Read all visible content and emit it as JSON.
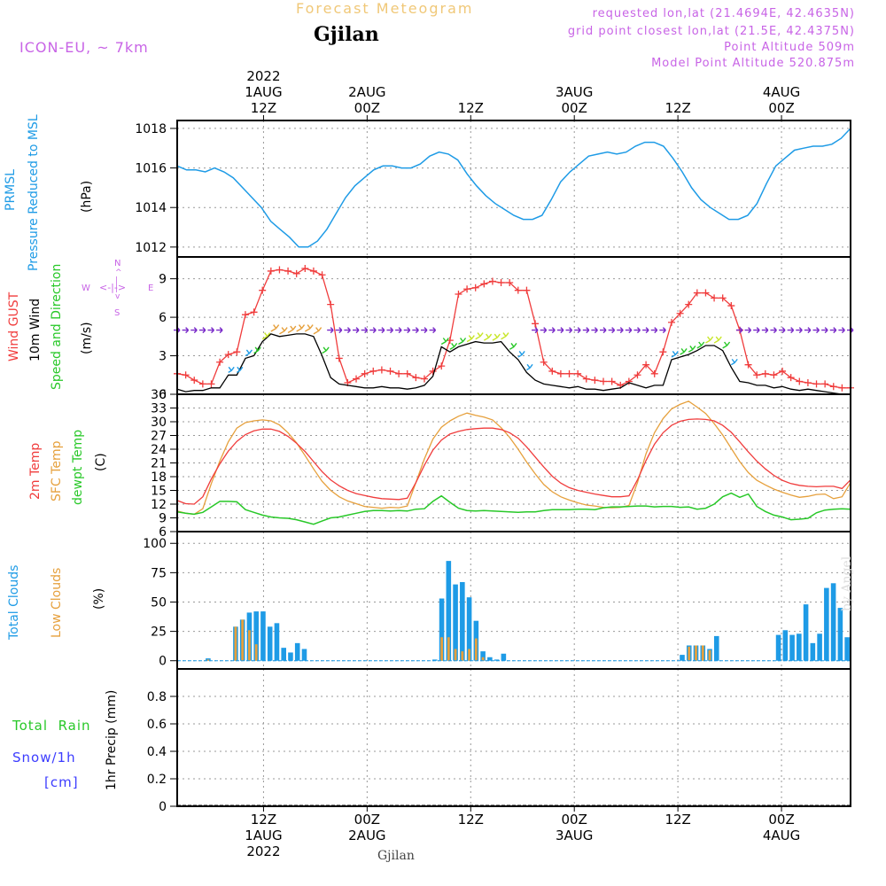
{
  "header": {
    "product": "Forecast Meteogram",
    "location": "Gjilan",
    "model": "ICON-EU, ~ 7km",
    "requested": "requested lon,lat (21.4694E, 42.4635N)",
    "grid_point": "grid point closest lon,lat (21.5E, 42.4375N)",
    "point_altitude": "Point Altitude 509m",
    "model_altitude": "Model Point Altitude 520.875m",
    "footer_location": "Gjilan",
    "watermark": "by Angel"
  },
  "colors": {
    "pressure": "#1e9be6",
    "gust": "#f03c3c",
    "wind": "#000000",
    "temp2m": "#f03c3c",
    "sfc": "#e6a03c",
    "dewpt": "#28c828",
    "total_clouds": "#1e9be6",
    "low_clouds": "#e6a03c",
    "rain": "#28c828",
    "snow": "#3c3cff",
    "header_orange": "#f0c878",
    "header_purple": "#c864e6",
    "grid": "#999999"
  },
  "time_axis": {
    "start": "2022-08-01T02:00Z",
    "end": "2022-08-04T08:00Z",
    "top_ticks": [
      {
        "lines": [
          "2022",
          "1AUG",
          "12Z"
        ]
      },
      {
        "lines": [
          "2AUG",
          "00Z"
        ]
      },
      {
        "lines": [
          "12Z"
        ]
      },
      {
        "lines": [
          "3AUG",
          "00Z"
        ]
      },
      {
        "lines": [
          "12Z"
        ]
      },
      {
        "lines": [
          "4AUG",
          "00Z"
        ]
      }
    ],
    "bottom_ticks": [
      {
        "lines": [
          "12Z",
          "1AUG",
          "2022"
        ]
      },
      {
        "lines": [
          "00Z",
          "2AUG"
        ]
      },
      {
        "lines": [
          "12Z"
        ]
      },
      {
        "lines": [
          "00Z",
          "3AUG"
        ]
      },
      {
        "lines": [
          "12Z"
        ]
      },
      {
        "lines": [
          "00Z",
          "4AUG"
        ]
      }
    ]
  },
  "panel_labels": {
    "pressure": {
      "lines": [
        "PRMSL",
        "Pressure Reduced to MSL"
      ],
      "unit": "(hPa)"
    },
    "wind": {
      "lines": [
        "Wind GUST",
        "10m Wind",
        "Speed and Direction"
      ],
      "unit": "(m/s)"
    },
    "compass": {
      "n": "N",
      "s": "S",
      "w": "W",
      "e": "E"
    },
    "temp": {
      "lines": [
        "2m Temp",
        "SFC Temp",
        "dewpt Temp"
      ],
      "unit": "(C)"
    },
    "clouds": {
      "lines": [
        "Total Clouds",
        "Low Clouds"
      ],
      "unit": "(%)"
    },
    "precip": {
      "rain": "Total  Rain",
      "snow": "Snow/1h",
      "snow_unit": "[cm]",
      "axis": "1hr Precip (mm)"
    }
  },
  "chart_data": [
    {
      "type": "line",
      "name": "pressure",
      "ylabel": "Pressure Reduced to MSL (hPa)",
      "ylim": [
        1011.5,
        1018.4
      ],
      "yticks": [
        1012,
        1014,
        1016,
        1018
      ],
      "grid": true,
      "series": [
        {
          "name": "PRMSL",
          "values": [
            1016.1,
            1015.9,
            1015.9,
            1015.8,
            1016.0,
            1015.8,
            1015.5,
            1015.0,
            1014.5,
            1014.0,
            1013.3,
            1012.9,
            1012.5,
            1012.0,
            1012.0,
            1012.3,
            1012.9,
            1013.7,
            1014.5,
            1015.1,
            1015.5,
            1015.9,
            1016.1,
            1016.1,
            1016.0,
            1016.0,
            1016.2,
            1016.6,
            1016.8,
            1016.7,
            1016.4,
            1015.7,
            1015.1,
            1014.6,
            1014.2,
            1013.9,
            1013.6,
            1013.4,
            1013.4,
            1013.6,
            1014.4,
            1015.3,
            1015.8,
            1016.2,
            1016.6,
            1016.7,
            1016.8,
            1016.7,
            1016.8,
            1017.1,
            1017.3,
            1017.3,
            1017.1,
            1016.5,
            1015.8,
            1015.0,
            1014.4,
            1014.0,
            1013.7,
            1013.4,
            1013.4,
            1013.6,
            1014.2,
            1015.2,
            1016.1,
            1016.5,
            1016.9,
            1017.0,
            1017.1,
            1017.1,
            1017.2,
            1017.5,
            1018.0
          ]
        }
      ]
    },
    {
      "type": "line",
      "name": "wind",
      "ylabel": "(m/s)",
      "ylim": [
        0,
        10.7
      ],
      "yticks": [
        0,
        3,
        6,
        9
      ],
      "grid": true,
      "series": [
        {
          "name": "Wind GUST",
          "values": [
            1.6,
            1.5,
            1.1,
            0.8,
            0.8,
            2.5,
            3.1,
            3.3,
            6.2,
            6.4,
            8.1,
            9.6,
            9.7,
            9.6,
            9.4,
            9.8,
            9.6,
            9.3,
            7.0,
            2.8,
            0.9,
            1.2,
            1.6,
            1.8,
            1.9,
            1.8,
            1.6,
            1.6,
            1.3,
            1.2,
            1.8,
            2.2,
            4.2,
            7.8,
            8.2,
            8.3,
            8.6,
            8.8,
            8.7,
            8.7,
            8.1,
            8.1,
            5.5,
            2.5,
            1.8,
            1.6,
            1.6,
            1.6,
            1.2,
            1.1,
            1.0,
            1.0,
            0.7,
            1.0,
            1.5,
            2.3,
            1.6,
            3.3,
            5.6,
            6.3,
            7.0,
            7.9,
            7.9,
            7.5,
            7.5,
            6.9,
            5.0,
            2.3,
            1.5,
            1.6,
            1.5,
            1.8,
            1.3,
            1.0,
            0.9,
            0.8,
            0.8,
            0.6,
            0.5,
            0.5
          ]
        },
        {
          "name": "10m Wind",
          "values": [
            0.4,
            0.2,
            0.3,
            0.3,
            0.5,
            0.5,
            1.5,
            1.5,
            2.8,
            3.0,
            4.1,
            4.7,
            4.5,
            4.6,
            4.7,
            4.7,
            4.5,
            3.0,
            1.3,
            0.8,
            0.7,
            0.6,
            0.5,
            0.5,
            0.6,
            0.5,
            0.5,
            0.4,
            0.5,
            0.7,
            1.4,
            3.7,
            3.3,
            3.7,
            3.9,
            4.1,
            4.0,
            4.0,
            4.1,
            3.3,
            2.7,
            1.7,
            1.1,
            0.8,
            0.7,
            0.6,
            0.5,
            0.6,
            0.4,
            0.4,
            0.3,
            0.4,
            0.5,
            0.9,
            0.7,
            0.5,
            0.7,
            0.7,
            2.7,
            2.9,
            3.1,
            3.4,
            3.8,
            3.8,
            3.4,
            2.1,
            1.0,
            0.9,
            0.7,
            0.7,
            0.5,
            0.6,
            0.4,
            0.3,
            0.4,
            0.3,
            0.2,
            0.1,
            0.0,
            0.0
          ]
        }
      ]
    },
    {
      "type": "line",
      "name": "temperature",
      "ylabel": "(C)",
      "ylim": [
        6,
        36
      ],
      "yticks": [
        6,
        9,
        12,
        15,
        18,
        21,
        24,
        27,
        30,
        33,
        36
      ],
      "grid": true,
      "series": [
        {
          "name": "2m Temp",
          "values": [
            12.8,
            12.1,
            12.0,
            13.6,
            17.5,
            20.8,
            23.6,
            25.7,
            27.2,
            28.0,
            28.4,
            28.4,
            27.9,
            26.8,
            25.3,
            23.5,
            21.3,
            19.1,
            17.3,
            16.0,
            15.0,
            14.3,
            13.9,
            13.5,
            13.2,
            13.1,
            13.0,
            13.3,
            16.7,
            20.5,
            23.8,
            26.0,
            27.3,
            27.9,
            28.3,
            28.5,
            28.6,
            28.6,
            28.3,
            27.6,
            26.4,
            24.5,
            22.3,
            20.1,
            18.1,
            16.6,
            15.6,
            15.0,
            14.6,
            14.2,
            13.9,
            13.6,
            13.6,
            13.8,
            17.3,
            21.5,
            25.1,
            27.6,
            29.2,
            30.1,
            30.5,
            30.6,
            30.5,
            30.2,
            29.2,
            27.7,
            25.6,
            23.4,
            21.4,
            19.7,
            18.3,
            17.2,
            16.5,
            16.1,
            15.9,
            15.8,
            15.9,
            15.9,
            15.4,
            17.3
          ]
        },
        {
          "name": "SFC Temp",
          "values": [
            10.5,
            10.0,
            9.8,
            11.0,
            16.5,
            21.4,
            25.6,
            28.6,
            29.8,
            30.2,
            30.4,
            30.2,
            29.3,
            27.6,
            25.4,
            22.6,
            19.7,
            17.0,
            15.0,
            13.6,
            12.7,
            12.1,
            11.5,
            11.3,
            11.1,
            11.3,
            11.2,
            11.6,
            16.7,
            21.9,
            26.2,
            28.8,
            30.2,
            31.2,
            31.9,
            31.4,
            31.0,
            30.4,
            28.7,
            26.6,
            24.0,
            21.2,
            18.6,
            16.3,
            14.7,
            13.6,
            12.9,
            12.3,
            11.8,
            11.6,
            11.3,
            11.2,
            11.3,
            11.7,
            16.7,
            23.0,
            27.6,
            30.7,
            32.8,
            33.8,
            34.5,
            33.2,
            31.8,
            29.6,
            27.1,
            24.2,
            21.3,
            18.9,
            17.2,
            16.2,
            15.3,
            14.6,
            14.0,
            13.5,
            13.7,
            14.1,
            14.2,
            13.2,
            13.6,
            16.7
          ]
        },
        {
          "name": "dewpt Temp",
          "values": [
            10.3,
            10.0,
            9.8,
            10.2,
            11.4,
            12.6,
            12.6,
            12.5,
            10.8,
            10.2,
            9.6,
            9.2,
            9.0,
            8.9,
            8.6,
            8.1,
            7.6,
            8.3,
            9.0,
            9.2,
            9.6,
            10.0,
            10.4,
            10.6,
            10.6,
            10.5,
            10.6,
            10.5,
            10.9,
            11.0,
            12.6,
            13.8,
            12.4,
            11.1,
            10.6,
            10.5,
            10.6,
            10.5,
            10.4,
            10.3,
            10.2,
            10.3,
            10.3,
            10.6,
            10.8,
            10.8,
            10.8,
            10.9,
            10.9,
            10.8,
            11.2,
            11.4,
            11.4,
            11.5,
            11.6,
            11.6,
            11.4,
            11.5,
            11.5,
            11.3,
            11.4,
            10.9,
            11.1,
            12.0,
            13.6,
            14.4,
            13.5,
            14.2,
            11.5,
            10.4,
            9.6,
            9.2,
            8.6,
            8.7,
            8.9,
            10.1,
            10.7,
            10.9,
            11.0,
            10.9
          ]
        }
      ]
    },
    {
      "type": "bar",
      "name": "clouds",
      "ylabel": "(%)",
      "ylim": [
        0,
        100
      ],
      "yticks": [
        0,
        25,
        50,
        75,
        100
      ],
      "grid": true,
      "series": [
        {
          "name": "Total Clouds",
          "values": [
            0,
            0,
            0,
            0,
            2,
            0,
            0,
            0,
            29,
            35,
            41,
            42,
            42,
            29,
            32,
            11,
            7,
            15,
            10,
            0,
            0,
            0,
            0,
            0,
            0,
            0,
            0,
            0,
            0,
            0,
            0,
            0,
            0,
            0,
            0,
            0,
            0,
            1,
            53,
            85,
            65,
            67,
            54,
            34,
            8,
            3,
            1,
            6,
            0,
            0,
            0,
            0,
            0,
            0,
            0,
            0,
            0,
            0,
            0,
            0,
            0,
            0,
            0,
            0,
            0,
            0,
            0,
            0,
            0,
            0,
            0,
            0,
            0,
            5,
            13,
            13,
            13,
            10,
            21,
            0,
            0,
            0,
            0,
            0,
            0,
            0,
            0,
            22,
            26,
            22,
            23,
            48,
            15,
            23,
            62,
            66,
            45,
            20
          ]
        },
        {
          "name": "Low Clouds",
          "values": [
            0,
            0,
            0,
            0,
            1,
            0,
            0,
            0,
            29,
            35,
            26,
            14,
            0,
            0,
            0,
            0,
            0,
            0,
            0,
            0,
            0,
            0,
            0,
            0,
            0,
            0,
            0,
            0,
            0,
            0,
            0,
            0,
            0,
            0,
            0,
            0,
            0,
            0,
            20,
            20,
            10,
            8,
            10,
            19,
            3,
            0,
            0,
            0,
            0,
            0,
            0,
            0,
            0,
            0,
            0,
            0,
            0,
            0,
            0,
            0,
            0,
            0,
            0,
            0,
            0,
            0,
            0,
            0,
            0,
            0,
            0,
            0,
            0,
            0,
            12,
            13,
            13,
            9,
            0,
            0,
            0,
            0,
            0,
            0,
            0,
            0,
            0,
            0,
            0,
            0,
            0,
            0,
            0,
            0,
            0,
            0,
            0,
            0
          ]
        }
      ]
    },
    {
      "type": "bar",
      "name": "precip",
      "ylabel": "1hr Precip (mm)",
      "ylim": [
        0,
        1.0
      ],
      "yticks": [
        0,
        0.2,
        0.4,
        0.6,
        0.8
      ],
      "grid": true,
      "series": [
        {
          "name": "Total Rain",
          "values": []
        },
        {
          "name": "Snow/1h",
          "values": []
        }
      ]
    }
  ]
}
